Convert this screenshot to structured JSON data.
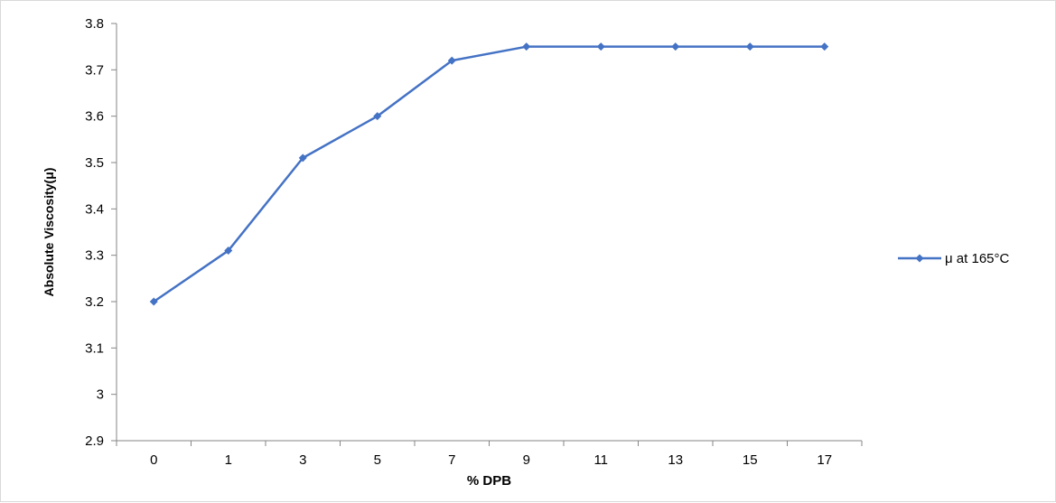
{
  "chart_data": {
    "type": "line",
    "title": "",
    "xlabel": "% DPB",
    "ylabel": "Absolute Viscosity(μ)",
    "categories": [
      "0",
      "1",
      "3",
      "5",
      "7",
      "9",
      "11",
      "13",
      "15",
      "17"
    ],
    "ylim": [
      2.9,
      3.8
    ],
    "yticks": [
      2.9,
      3,
      3.1,
      3.2,
      3.3,
      3.4,
      3.5,
      3.6,
      3.7,
      3.8
    ],
    "ytick_labels": [
      "2.9",
      "3",
      "3.1",
      "3.2",
      "3.3",
      "3.4",
      "3.5",
      "3.6",
      "3.7",
      "3.8"
    ],
    "grid": false,
    "legend_position": "right",
    "series": [
      {
        "name": "μ at 165°C",
        "color": "#4472C4",
        "marker": "diamond",
        "values": [
          3.2,
          3.31,
          3.51,
          3.6,
          3.72,
          3.75,
          3.75,
          3.75,
          3.75,
          3.75
        ]
      }
    ]
  }
}
